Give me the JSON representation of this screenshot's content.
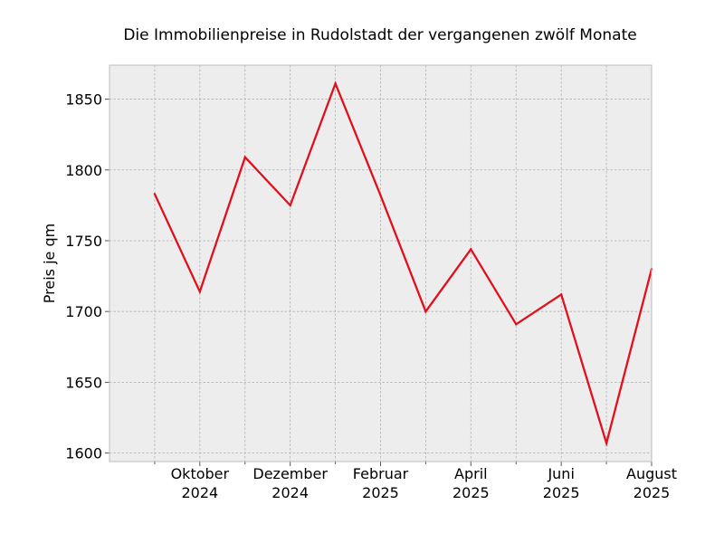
{
  "chart_data": {
    "type": "line",
    "title": "Die Immobilienpreise in Rudolstadt der vergangenen zwölf Monate",
    "xlabel": "",
    "ylabel": "Preis je qm",
    "x": [
      "2024-09",
      "2024-10",
      "2024-11",
      "2024-12",
      "2025-01",
      "2025-02",
      "2025-03",
      "2025-04",
      "2025-05",
      "2025-06",
      "2025-07",
      "2025-08"
    ],
    "series": [
      {
        "values": [
          1783,
          1714,
          1809,
          1775,
          1861,
          1782,
          1700,
          1744,
          1691,
          1712,
          1607,
          1730
        ],
        "color": "#e0101c"
      }
    ],
    "x_tick_labels": [
      {
        "x": "2024-10",
        "lines": [
          "Oktober",
          "2024"
        ]
      },
      {
        "x": "2024-12",
        "lines": [
          "Dezember",
          "2024"
        ]
      },
      {
        "x": "2025-02",
        "lines": [
          "Februar",
          "2025"
        ]
      },
      {
        "x": "2025-04",
        "lines": [
          "April",
          "2025"
        ]
      },
      {
        "x": "2025-06",
        "lines": [
          "Juni",
          "2025"
        ]
      },
      {
        "x": "2025-08",
        "lines": [
          "August",
          "2025"
        ]
      }
    ],
    "yticks": [
      1600,
      1650,
      1700,
      1750,
      1800,
      1850
    ],
    "xlim": [
      "2024-08",
      "2025-08"
    ],
    "ylim": [
      1594,
      1874
    ],
    "grid": true,
    "background_color": "#ededed",
    "grid_color": "#b0b0b0"
  }
}
